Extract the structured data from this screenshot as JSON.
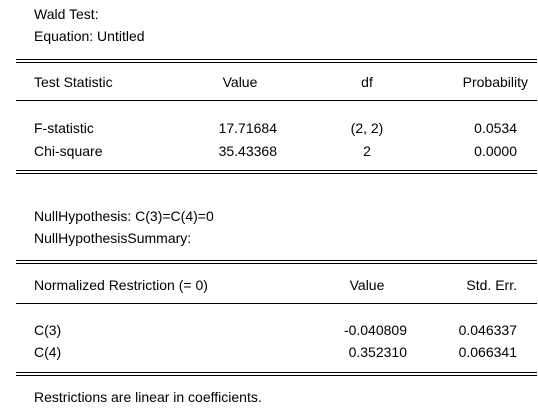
{
  "header": {
    "title": "Wald Test:",
    "equation": "Equation: Untitled"
  },
  "test_table": {
    "columns": [
      "Test Statistic",
      "Value",
      "df",
      "Probability"
    ],
    "rows": [
      {
        "name": "F-statistic",
        "value": "17.71684",
        "df": "(2, 2)",
        "probability": "0.0534"
      },
      {
        "name": "Chi-square",
        "value": "35.43368",
        "df": "2",
        "probability": "0.0000"
      }
    ]
  },
  "hypothesis": {
    "null": "NullHypothesis: C(3)=C(4)=0",
    "summary": "NullHypothesisSummary:"
  },
  "restriction_table": {
    "columns": [
      "Normalized Restriction (= 0)",
      "Value",
      "Std. Err."
    ],
    "rows": [
      {
        "name": "C(3)",
        "value": "-0.040809",
        "std_err": "0.046337"
      },
      {
        "name": "C(4)",
        "value": "0.352310",
        "std_err": "0.066341"
      }
    ]
  },
  "footer": {
    "note": "Restrictions are linear in coefficients."
  }
}
